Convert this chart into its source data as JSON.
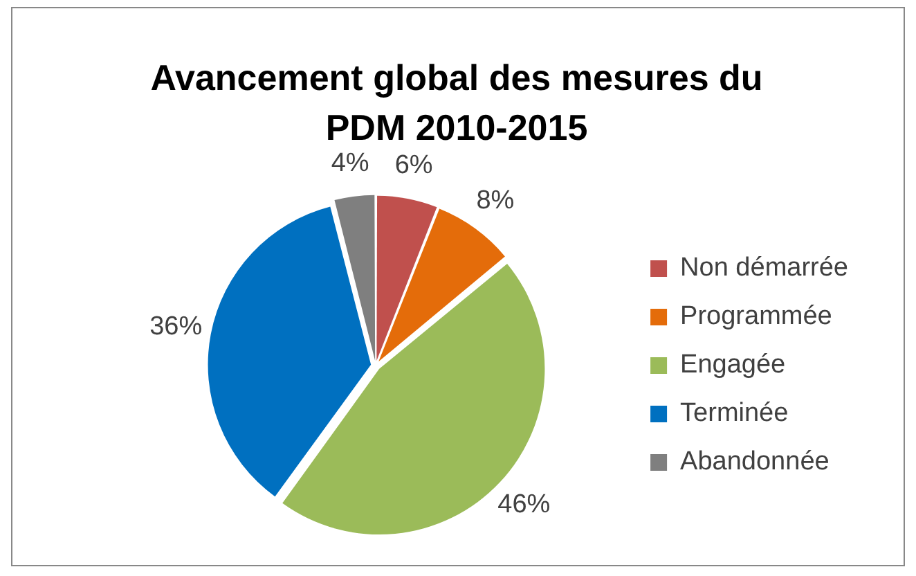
{
  "chart_data": {
    "type": "pie",
    "title": "Avancement global des mesures du PDM 2010-2015",
    "categories": [
      "Non démarrée",
      "Programmée",
      "Engagée",
      "Terminée",
      "Abandonnée"
    ],
    "values": [
      6,
      8,
      46,
      36,
      4
    ],
    "value_labels": [
      "6%",
      "8%",
      "46%",
      "36%",
      "4%"
    ],
    "colors": [
      "#c0504d",
      "#e46c0a",
      "#9bbb59",
      "#0070c0",
      "#7f7f7f"
    ],
    "legend": "right"
  }
}
